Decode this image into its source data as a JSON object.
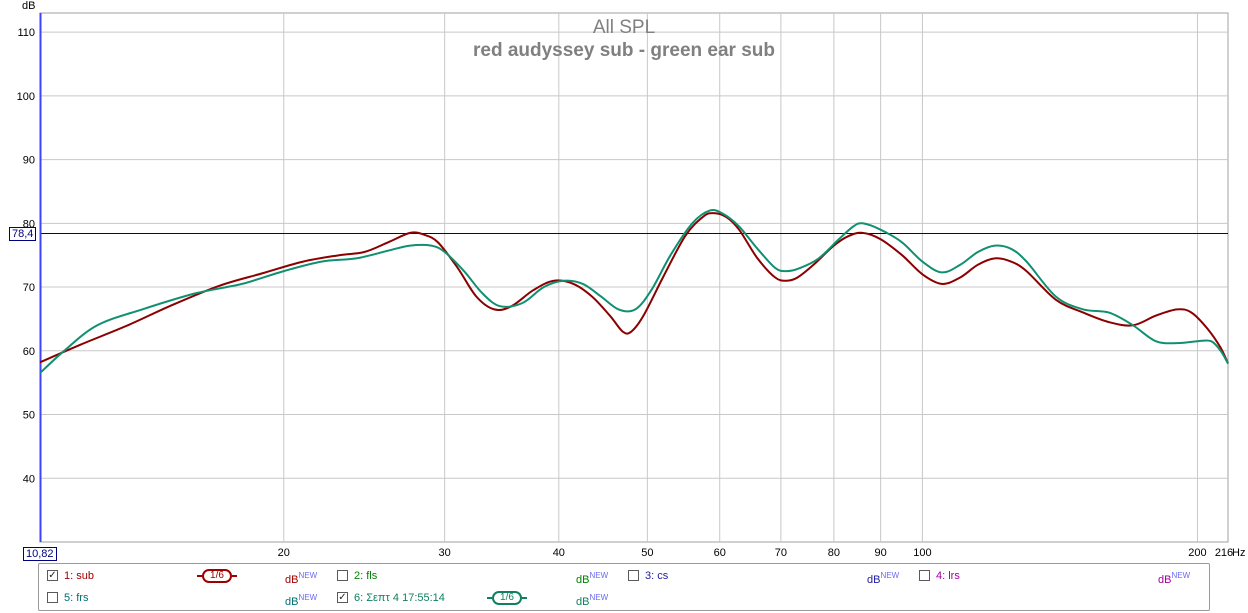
{
  "chart_data": {
    "type": "line",
    "title": "All SPL",
    "subtitle": "red audyssey sub - green ear sub",
    "xlabel": "Hz",
    "ylabel": "dB",
    "xscale": "log",
    "xlim": [
      10.82,
      216
    ],
    "ylim": [
      30,
      113
    ],
    "x_ticks": [
      20,
      30,
      40,
      50,
      60,
      70,
      80,
      90,
      100,
      200,
      216
    ],
    "x_tick_labels": [
      "20",
      "30",
      "40",
      "50",
      "60",
      "70",
      "80",
      "90",
      "100",
      "200",
      "216"
    ],
    "y_ticks": [
      40,
      50,
      60,
      70,
      80,
      90,
      100,
      110
    ],
    "y_tick_labels": [
      "40",
      "50",
      "60",
      "70",
      "80",
      "90",
      "100",
      "110"
    ],
    "grid": true,
    "cursor": {
      "x_label": "10,82",
      "y_label": "78,4",
      "y_value": 78.4
    },
    "series": [
      {
        "name": "1: sub",
        "color": "#8b0000",
        "points": [
          [
            10.82,
            58.2
          ],
          [
            12,
            61
          ],
          [
            13.5,
            64
          ],
          [
            15,
            67
          ],
          [
            17,
            70.2
          ],
          [
            19,
            72.2
          ],
          [
            21,
            74
          ],
          [
            23,
            75
          ],
          [
            24.5,
            75.5
          ],
          [
            26,
            77
          ],
          [
            27.5,
            78.5
          ],
          [
            28.5,
            78.2
          ],
          [
            29.5,
            77
          ],
          [
            31,
            73
          ],
          [
            32.5,
            68.5
          ],
          [
            34,
            66.5
          ],
          [
            35.5,
            67
          ],
          [
            37.5,
            69.5
          ],
          [
            39.5,
            71
          ],
          [
            41.5,
            70.5
          ],
          [
            43.5,
            68.5
          ],
          [
            45.5,
            65.5
          ],
          [
            47,
            63
          ],
          [
            48,
            63
          ],
          [
            49.5,
            65.5
          ],
          [
            52,
            71.5
          ],
          [
            55,
            78
          ],
          [
            57.5,
            81
          ],
          [
            59,
            81.6
          ],
          [
            61,
            81
          ],
          [
            63,
            79
          ],
          [
            66,
            74.5
          ],
          [
            69,
            71.5
          ],
          [
            71,
            71
          ],
          [
            73,
            71.5
          ],
          [
            76,
            73.5
          ],
          [
            80,
            76.5
          ],
          [
            83,
            78
          ],
          [
            86,
            78.5
          ],
          [
            90,
            77.5
          ],
          [
            95,
            75
          ],
          [
            100,
            72
          ],
          [
            105,
            70.5
          ],
          [
            110,
            71.5
          ],
          [
            115,
            73.5
          ],
          [
            120,
            74.5
          ],
          [
            125,
            74
          ],
          [
            130,
            72.5
          ],
          [
            140,
            68
          ],
          [
            150,
            66
          ],
          [
            160,
            64.5
          ],
          [
            170,
            64
          ],
          [
            180,
            65.5
          ],
          [
            190,
            66.5
          ],
          [
            197,
            66
          ],
          [
            205,
            63.5
          ],
          [
            212,
            60.5
          ],
          [
            216,
            58
          ]
        ]
      },
      {
        "name": "6: Σεπτ 4 17:55:14",
        "color": "#109070",
        "points": [
          [
            10.82,
            56.5
          ],
          [
            11.5,
            60
          ],
          [
            12.5,
            64
          ],
          [
            14,
            66.5
          ],
          [
            16,
            69
          ],
          [
            18,
            70.5
          ],
          [
            20,
            72.5
          ],
          [
            22,
            74
          ],
          [
            24,
            74.5
          ],
          [
            26,
            75.7
          ],
          [
            27.5,
            76.5
          ],
          [
            29,
            76.5
          ],
          [
            30,
            75.5
          ],
          [
            31.5,
            72.5
          ],
          [
            33,
            69
          ],
          [
            34.5,
            67
          ],
          [
            36.5,
            67.5
          ],
          [
            38.5,
            70
          ],
          [
            40.5,
            71
          ],
          [
            42.5,
            70.5
          ],
          [
            44.5,
            68.5
          ],
          [
            46.5,
            66.5
          ],
          [
            48.5,
            66.5
          ],
          [
            50.5,
            69.5
          ],
          [
            53,
            75
          ],
          [
            56,
            80
          ],
          [
            58.5,
            82
          ],
          [
            60.5,
            81.5
          ],
          [
            63,
            79.5
          ],
          [
            66,
            76
          ],
          [
            69,
            73
          ],
          [
            71,
            72.5
          ],
          [
            73.5,
            73
          ],
          [
            77,
            74.5
          ],
          [
            81,
            77.5
          ],
          [
            84,
            79.5
          ],
          [
            86,
            80
          ],
          [
            90,
            79
          ],
          [
            95,
            77
          ],
          [
            100,
            74
          ],
          [
            105,
            72.3
          ],
          [
            110,
            73.5
          ],
          [
            115,
            75.5
          ],
          [
            120,
            76.5
          ],
          [
            125,
            76
          ],
          [
            130,
            74
          ],
          [
            140,
            68.5
          ],
          [
            150,
            66.5
          ],
          [
            160,
            66
          ],
          [
            170,
            64
          ],
          [
            180,
            61.5
          ],
          [
            190,
            61.2
          ],
          [
            200,
            61.5
          ],
          [
            207,
            61.5
          ],
          [
            212,
            60
          ],
          [
            216,
            58
          ]
        ]
      }
    ]
  },
  "legend": {
    "items": [
      {
        "label": "1: sub",
        "color": "#a00000",
        "checked": true,
        "db_label": "dB",
        "db_sup": "NEW",
        "smoothing": "1/6"
      },
      {
        "label": "2: fls",
        "color": "#008000",
        "checked": false,
        "db_label": "dB",
        "db_sup": "NEW"
      },
      {
        "label": "3: cs",
        "color": "#2020a0",
        "checked": false,
        "db_label": "dB",
        "db_sup": "NEW"
      },
      {
        "label": "4: lrs",
        "color": "#a000a0",
        "checked": false,
        "db_label": "dB",
        "db_sup": "NEW"
      },
      {
        "label": "5: frs",
        "color": "#007070",
        "checked": false,
        "db_label": "dB",
        "db_sup": "NEW"
      },
      {
        "label": "6: Σεπτ 4 17:55:14",
        "color": "#108060",
        "checked": true,
        "db_label": "dB",
        "db_sup": "NEW",
        "smoothing": "1/6"
      }
    ]
  }
}
